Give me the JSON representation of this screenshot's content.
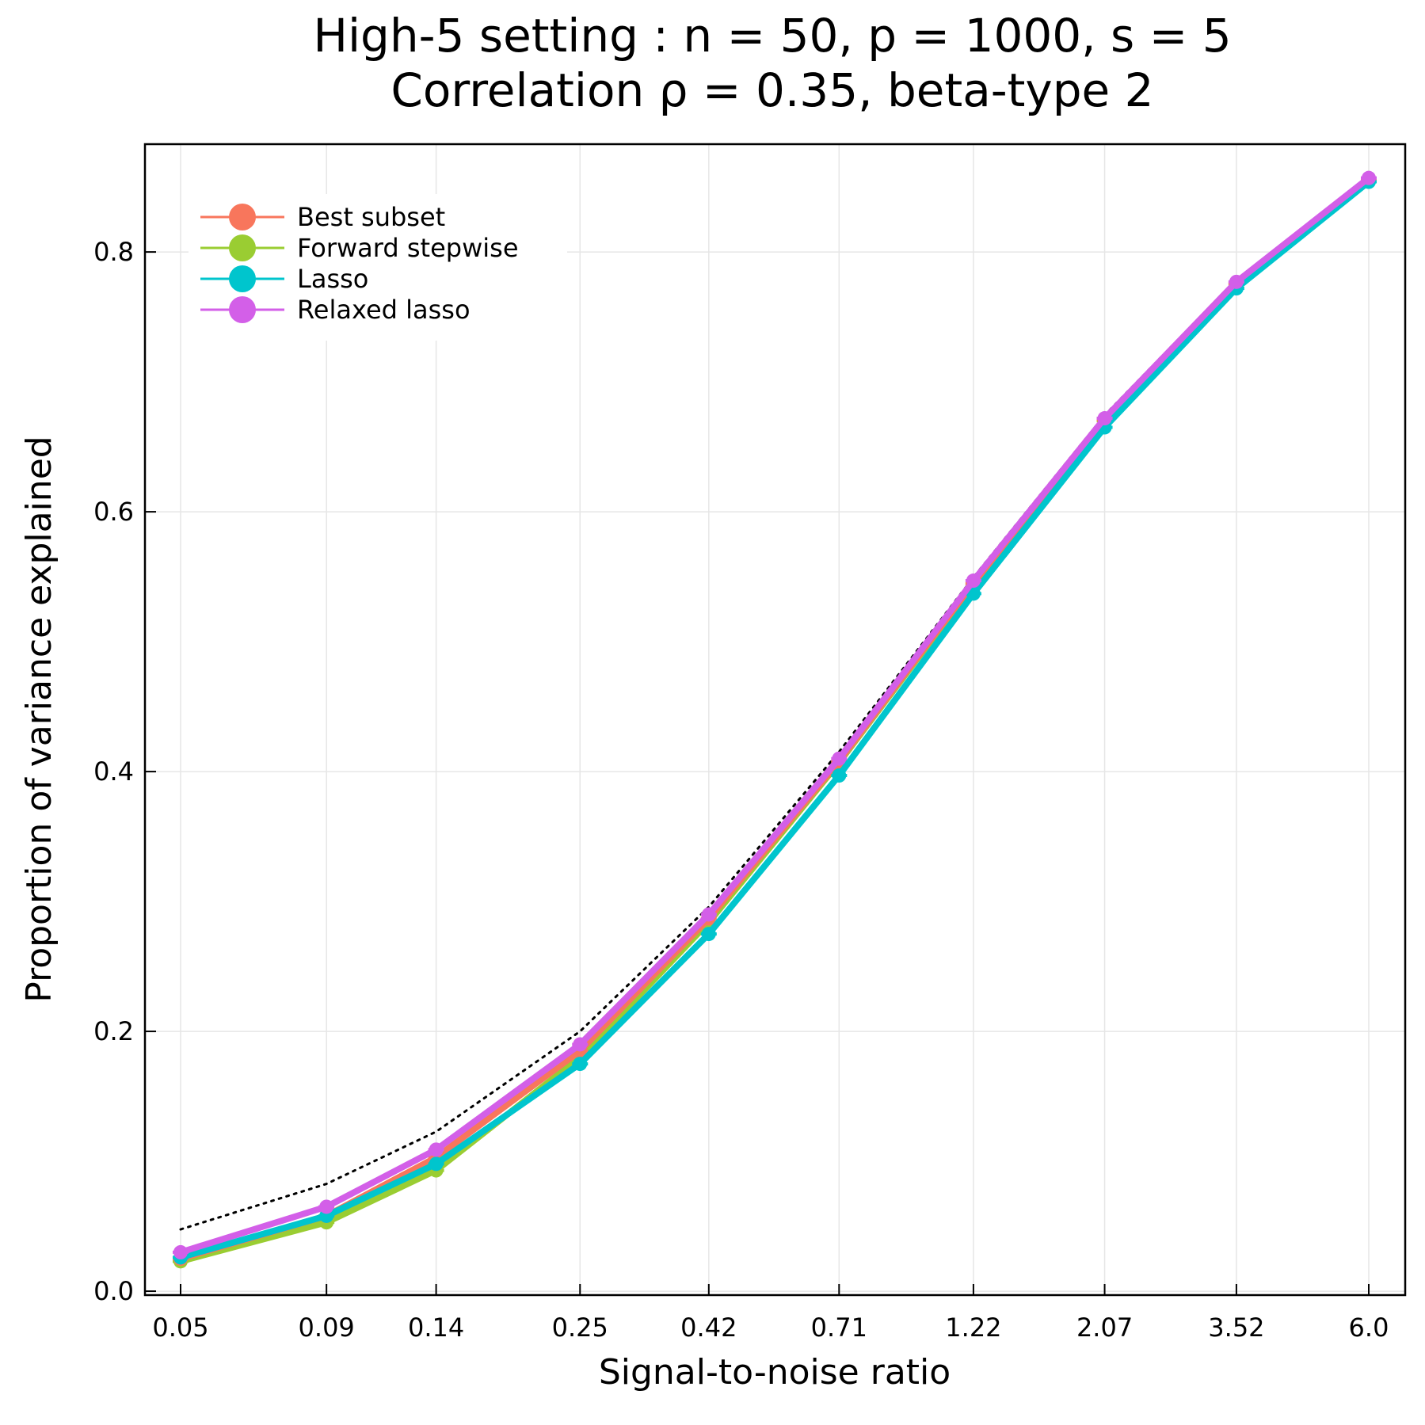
{
  "chart_data": {
    "type": "line",
    "title": "High-5 setting : n = 50, p = 1000, s = 5",
    "subtitle": "Correlation ρ = 0.35, beta-type 2",
    "xlabel": "Signal-to-noise ratio",
    "ylabel": "Proportion of variance explained",
    "x_scale": "log",
    "x_ticks": [
      "0.05",
      "0.09",
      "0.14",
      "0.25",
      "0.42",
      "0.71",
      "1.22",
      "2.07",
      "3.52",
      "6.0"
    ],
    "x": [
      0.05,
      0.09,
      0.14,
      0.25,
      0.42,
      0.71,
      1.22,
      2.07,
      3.52,
      6.0
    ],
    "ylim": [
      -0.003,
      0.883
    ],
    "y_ticks": [
      "0.0",
      "0.2",
      "0.4",
      "0.6",
      "0.8"
    ],
    "y_tick_values": [
      0.0,
      0.2,
      0.4,
      0.6,
      0.8
    ],
    "grid": true,
    "legend_position": "top-left",
    "reference_line": {
      "style": "dotted",
      "color": "#000000",
      "values": [
        0.0476,
        0.0826,
        0.1228,
        0.2,
        0.2958,
        0.4152,
        0.5495,
        0.6743,
        0.7787,
        0.8571
      ]
    },
    "series": [
      {
        "name": "Best subset",
        "color": "#f8765c",
        "values": [
          0.025,
          0.058,
          0.103,
          0.185,
          0.287,
          0.408,
          0.545,
          0.671,
          0.776,
          0.856
        ]
      },
      {
        "name": "Forward stepwise",
        "color": "#9acd32",
        "values": [
          0.023,
          0.053,
          0.093,
          0.18,
          0.284,
          0.407,
          0.544,
          0.67,
          0.775,
          0.855
        ]
      },
      {
        "name": "Lasso",
        "color": "#00c5cd",
        "values": [
          0.026,
          0.058,
          0.098,
          0.175,
          0.275,
          0.397,
          0.537,
          0.665,
          0.772,
          0.854
        ]
      },
      {
        "name": "Relaxed lasso",
        "color": "#d35fe8",
        "values": [
          0.03,
          0.065,
          0.109,
          0.19,
          0.29,
          0.41,
          0.547,
          0.672,
          0.777,
          0.857
        ]
      }
    ]
  }
}
